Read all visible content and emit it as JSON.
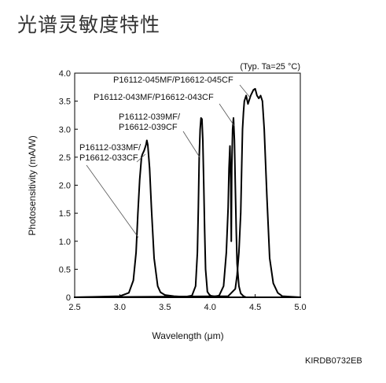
{
  "title": "光谱灵敏度特性",
  "doc_code": "KIRDB0732EB",
  "chart_data": {
    "type": "line",
    "xlabel": "Wavelength (μm)",
    "ylabel": "Photosensitivity (mA/W)",
    "xlim": [
      2.5,
      5.0
    ],
    "ylim": [
      0,
      4.0
    ],
    "x_ticks": [
      "2.5",
      "3.0",
      "3.5",
      "4.0",
      "4.5",
      "5.0"
    ],
    "y_ticks": [
      "0",
      "0.5",
      "1.0",
      "1.5",
      "2.0",
      "2.5",
      "3.0",
      "3.5",
      "4.0"
    ],
    "annotation": "(Typ. Ta=25 °C)",
    "grid": false,
    "series": [
      {
        "name": "P16112-033MF/ P16612-033CF",
        "label_lines": [
          "P16112-033MF/",
          "P16612-033CF"
        ],
        "x": [
          2.5,
          3.0,
          3.1,
          3.15,
          3.18,
          3.2,
          3.22,
          3.24,
          3.25,
          3.27,
          3.29,
          3.3,
          3.31,
          3.33,
          3.35,
          3.38,
          3.42,
          3.45,
          3.5,
          3.6,
          3.8,
          5.0
        ],
        "y": [
          0.0,
          0.02,
          0.08,
          0.3,
          0.8,
          1.5,
          2.1,
          2.5,
          2.55,
          2.62,
          2.72,
          2.8,
          2.72,
          2.3,
          1.6,
          0.7,
          0.2,
          0.09,
          0.04,
          0.02,
          0.0,
          0.0
        ]
      },
      {
        "name": "P16112-039MF/ P16612-039CF",
        "label_lines": [
          "P16112-039MF/",
          "P16612-039CF"
        ],
        "x": [
          2.5,
          3.7,
          3.8,
          3.84,
          3.86,
          3.87,
          3.88,
          3.89,
          3.9,
          3.91,
          3.92,
          3.93,
          3.94,
          3.95,
          3.97,
          4.0,
          4.1,
          5.0
        ],
        "y": [
          0.0,
          0.0,
          0.03,
          0.2,
          0.8,
          1.6,
          2.5,
          3.0,
          3.2,
          3.18,
          2.8,
          2.0,
          1.2,
          0.5,
          0.1,
          0.03,
          0.0,
          0.0
        ]
      },
      {
        "name": "P16112-043MF/P16612-043CF",
        "label_lines": [
          "P16112-043MF/P16612-043CF"
        ],
        "x": [
          2.5,
          4.0,
          4.1,
          4.15,
          4.18,
          4.2,
          4.21,
          4.22,
          4.23,
          4.235,
          4.24,
          4.25,
          4.26,
          4.27,
          4.28,
          4.29,
          4.3,
          4.32,
          4.34,
          4.37,
          4.4,
          4.5,
          5.0
        ],
        "y": [
          0.0,
          0.0,
          0.03,
          0.2,
          0.8,
          1.6,
          2.3,
          2.7,
          2.0,
          1.0,
          2.3,
          3.0,
          3.2,
          2.8,
          2.0,
          1.2,
          0.6,
          0.2,
          0.07,
          0.02,
          0.0,
          0.0,
          0.0
        ]
      },
      {
        "name": "P16112-045MF/P16612-045CF",
        "label_lines": [
          "P16112-045MF/P16612-045CF"
        ],
        "x": [
          2.5,
          4.2,
          4.28,
          4.3,
          4.32,
          4.34,
          4.35,
          4.36,
          4.37,
          4.38,
          4.4,
          4.42,
          4.45,
          4.48,
          4.5,
          4.52,
          4.54,
          4.56,
          4.58,
          4.6,
          4.63,
          4.66,
          4.7,
          4.75,
          4.8,
          5.0
        ],
        "y": [
          0.0,
          0.02,
          0.15,
          0.4,
          0.8,
          1.5,
          2.3,
          3.0,
          3.3,
          3.5,
          3.6,
          3.45,
          3.6,
          3.7,
          3.72,
          3.6,
          3.55,
          3.6,
          3.5,
          3.0,
          1.8,
          0.7,
          0.25,
          0.08,
          0.02,
          0.0
        ]
      }
    ]
  }
}
